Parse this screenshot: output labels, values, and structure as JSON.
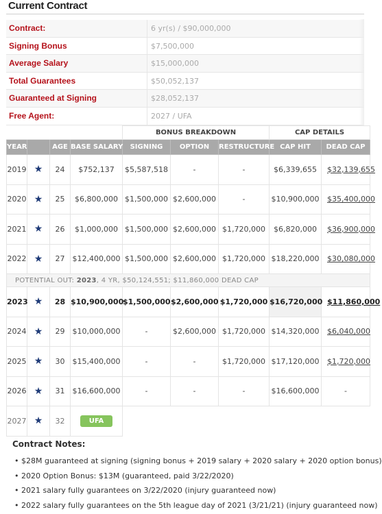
{
  "title": "Current Contract",
  "summary": [
    {
      "label": "Contract:",
      "value": "6 yr(s) / $90,000,000"
    },
    {
      "label": "Signing Bonus",
      "value": "$7,500,000"
    },
    {
      "label": "Average Salary",
      "value": "$15,000,000"
    },
    {
      "label": "Total Guarantees",
      "value": "$50,052,137"
    },
    {
      "label": "Guaranteed at Signing",
      "value": "$28,052,137"
    },
    {
      "label": "Free Agent:",
      "value": "2027 / UFA"
    }
  ],
  "groups": {
    "bonus": "BONUS BREAKDOWN",
    "cap": "CAP DETAILS"
  },
  "columns": [
    "YEAR",
    "AGE",
    "BASE SALARY",
    "SIGNING",
    "OPTION",
    "RESTRUCTURE",
    "CAP HIT",
    "DEAD CAP"
  ],
  "rows": [
    {
      "year": "2019",
      "age": "24",
      "base": "$752,137",
      "signing": "$5,587,518",
      "option": "-",
      "restructure": "-",
      "cap_hit": "$6,339,655",
      "dead_cap": "$32,139,655"
    },
    {
      "year": "2020",
      "age": "25",
      "base": "$6,800,000",
      "signing": "$1,500,000",
      "option": "$2,600,000",
      "restructure": "-",
      "cap_hit": "$10,900,000",
      "dead_cap": "$35,400,000"
    },
    {
      "year": "2021",
      "age": "26",
      "base": "$1,000,000",
      "signing": "$1,500,000",
      "option": "$2,600,000",
      "restructure": "$1,720,000",
      "cap_hit": "$6,820,000",
      "dead_cap": "$36,900,000"
    },
    {
      "year": "2022",
      "age": "27",
      "base": "$12,400,000",
      "signing": "$1,500,000",
      "option": "$2,600,000",
      "restructure": "$1,720,000",
      "cap_hit": "$18,220,000",
      "dead_cap": "$30,080,000"
    }
  ],
  "potential_out": {
    "prefix": "POTENTIAL OUT: ",
    "year": "2023",
    "rest": ", 4 YR, $50,124,551; $11,860,000 DEAD CAP"
  },
  "rows_after": [
    {
      "year": "2023",
      "age": "28",
      "base": "$10,900,000",
      "signing": "$1,500,000",
      "option": "$2,600,000",
      "restructure": "$1,720,000",
      "cap_hit": "$16,720,000",
      "dead_cap": "$11,860,000"
    },
    {
      "year": "2024",
      "age": "29",
      "base": "$10,000,000",
      "signing": "-",
      "option": "$2,600,000",
      "restructure": "$1,720,000",
      "cap_hit": "$14,320,000",
      "dead_cap": "$6,040,000"
    },
    {
      "year": "2025",
      "age": "30",
      "base": "$15,400,000",
      "signing": "-",
      "option": "-",
      "restructure": "$1,720,000",
      "cap_hit": "$17,120,000",
      "dead_cap": "$1,720,000"
    },
    {
      "year": "2026",
      "age": "31",
      "base": "$16,600,000",
      "signing": "-",
      "option": "-",
      "restructure": "-",
      "cap_hit": "$16,600,000",
      "dead_cap": "-"
    }
  ],
  "fa_row": {
    "year": "2027",
    "age": "32",
    "badge": "UFA"
  },
  "notes": {
    "title": "Contract Notes:",
    "items": [
      "$28M guaranteed at signing (signing bonus + 2019 salary + 2020 salary + 2020 option bonus)",
      "2020 Option Bonus: $13M (guaranteed, paid 3/22/2020)",
      "2021 salary fully guarantees on 3/22/2020 (injury guaranteed now)",
      "2022 salary fully guarantees on the 5th league day of 2021 (3/21/21) (injury guaranteed now)"
    ]
  },
  "icons": {
    "team": "star-icon",
    "team_color": "#1f3b78",
    "accent": "#b5121b",
    "ufa_color": "#86c45d"
  }
}
